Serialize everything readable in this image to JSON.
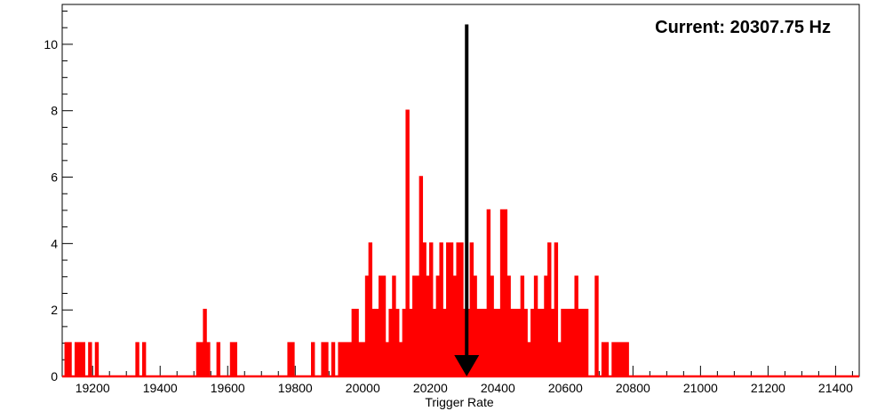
{
  "chart_data": {
    "type": "histogram",
    "title": "",
    "xlabel": "Trigger Rate",
    "ylabel": "",
    "xlim": [
      19110,
      21470
    ],
    "ylim": [
      0,
      11.2
    ],
    "x_ticks": [
      19200,
      19400,
      19600,
      19800,
      20000,
      20200,
      20400,
      20600,
      20800,
      21000,
      21200,
      21400
    ],
    "y_ticks": [
      0,
      2,
      4,
      6,
      8,
      10
    ],
    "grid": false,
    "line_color": "#ff0000",
    "arrow_color": "#000000",
    "annotation": {
      "text": "Current: 20307.75 Hz",
      "current_x": 20307.75,
      "arrow_top_y": 10.6,
      "arrow_bottom_y": 0
    },
    "series": [
      {
        "x": [
          19120,
          19130,
          19140,
          19150,
          19160,
          19170,
          19180,
          19190,
          19200,
          19210,
          19220,
          19330,
          19340,
          19350,
          19510,
          19520,
          19530,
          19540,
          19560,
          19570,
          19610,
          19620,
          19630,
          19780,
          19790,
          19850,
          19880,
          19890,
          19900,
          19910,
          19920,
          19930,
          19940,
          19950,
          19960,
          19970,
          19980,
          19990,
          20000,
          20010,
          20020,
          20030,
          20040,
          20050,
          20060,
          20070,
          20080,
          20090,
          20100,
          20110,
          20120,
          20130,
          20140,
          20150,
          20160,
          20170,
          20180,
          20190,
          20200,
          20210,
          20220,
          20230,
          20240,
          20250,
          20260,
          20270,
          20280,
          20290,
          20300,
          20310,
          20320,
          20330,
          20340,
          20350,
          20360,
          20370,
          20380,
          20390,
          20400,
          20410,
          20420,
          20430,
          20440,
          20450,
          20460,
          20470,
          20480,
          20490,
          20500,
          20510,
          20520,
          20530,
          20540,
          20550,
          20560,
          20570,
          20580,
          20590,
          20600,
          20610,
          20620,
          20630,
          20640,
          20650,
          20660,
          20680,
          20690,
          20700,
          20710,
          20720,
          20740,
          20750,
          20760,
          20770,
          20780,
          20790
        ],
        "values": [
          1,
          1,
          0,
          1,
          1,
          1,
          0,
          1,
          0,
          1,
          0,
          1,
          0,
          1,
          1,
          1,
          2,
          1,
          0,
          1,
          1,
          1,
          0,
          1,
          1,
          1,
          1,
          1,
          0,
          1,
          0,
          1,
          1,
          1,
          1,
          2,
          2,
          1,
          1,
          3,
          4,
          2,
          2,
          3,
          3,
          1,
          2,
          3,
          2,
          1,
          2,
          8,
          2,
          3,
          3,
          6,
          4,
          3,
          4,
          2,
          3,
          4,
          2,
          4,
          4,
          3,
          4,
          4,
          2,
          2,
          4,
          3,
          2,
          2,
          2,
          5,
          3,
          2,
          2,
          5,
          5,
          3,
          2,
          2,
          2,
          3,
          2,
          1,
          2,
          3,
          2,
          2,
          3,
          4,
          2,
          4,
          1,
          2,
          2,
          2,
          2,
          3,
          2,
          2,
          2,
          0,
          3,
          0,
          1,
          1,
          1,
          1,
          1,
          1,
          1,
          0
        ]
      }
    ]
  }
}
